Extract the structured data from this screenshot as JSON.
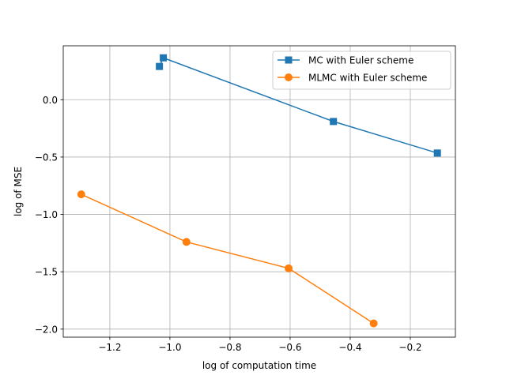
{
  "chart_data": {
    "type": "line",
    "xlabel": "log of computation time",
    "ylabel": "log of MSE",
    "xlim": [
      -1.355,
      -0.05
    ],
    "ylim": [
      -2.07,
      0.47
    ],
    "xticks": [
      -1.2,
      -1.0,
      -0.8,
      -0.6,
      -0.4,
      -0.2
    ],
    "xtick_labels": [
      "−1.2",
      "−1.0",
      "−0.8",
      "−0.6",
      "−0.4",
      "−0.2"
    ],
    "yticks": [
      -2.0,
      -1.5,
      -1.0,
      -0.5,
      0.0
    ],
    "ytick_labels": [
      "−2.0",
      "−1.5",
      "−1.0",
      "−0.5",
      "0.0"
    ],
    "grid": true,
    "legend_position": "upper right",
    "series": [
      {
        "name": "MC with Euler scheme",
        "color": "#1f77b4",
        "marker": "square",
        "x": [
          -1.035,
          -1.022,
          -0.456,
          -0.11
        ],
        "y": [
          0.29,
          0.365,
          -0.19,
          -0.465
        ]
      },
      {
        "name": "MLMC with Euler scheme",
        "color": "#ff7f0e",
        "marker": "circle",
        "x": [
          -1.295,
          -0.945,
          -0.605,
          -0.322
        ],
        "y": [
          -0.825,
          -1.24,
          -1.47,
          -1.95
        ]
      }
    ]
  }
}
